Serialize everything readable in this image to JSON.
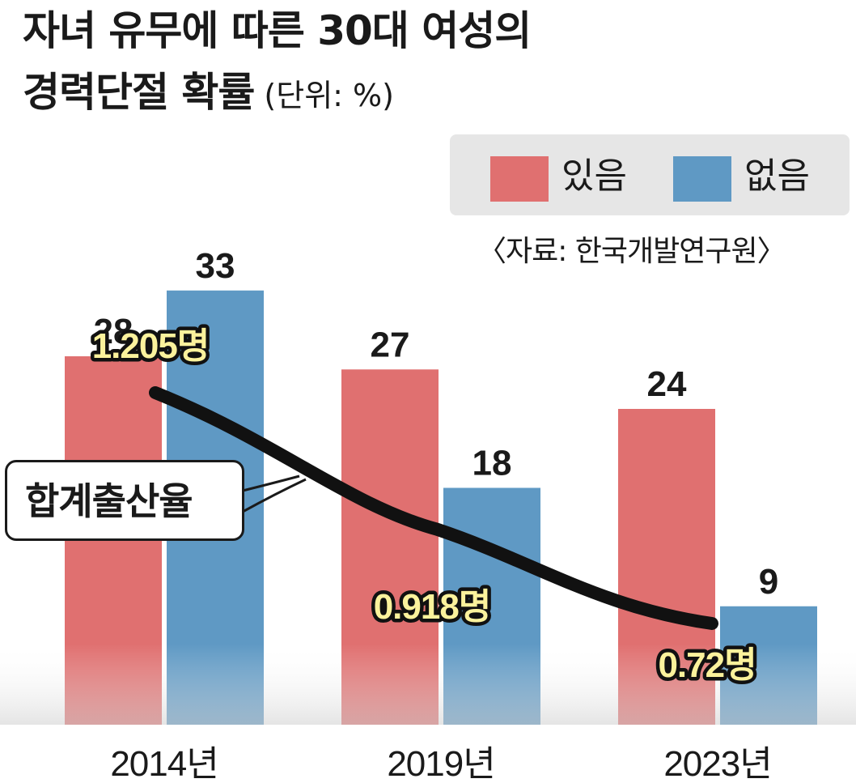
{
  "title_line1": "자녀 유무에 따른 30대 여성의",
  "title_line2": "경력단절 확률",
  "unit": "(단위: %)",
  "source": "〈자료: 한국개발연구원〉",
  "fertility_label": "합계출산율",
  "colors": {
    "with_children": "#e07070",
    "without_children": "#5f99c4",
    "line": "#111111",
    "rate_text": "#fbf29c"
  },
  "chart_data": {
    "type": "bar",
    "categories": [
      "2014년",
      "2019년",
      "2023년"
    ],
    "ylim": [
      0,
      40
    ],
    "legend": "top-right",
    "series": [
      {
        "name": "있음",
        "values": [
          28,
          27,
          24
        ],
        "labels": [
          "28",
          "27",
          "24"
        ]
      },
      {
        "name": "없음",
        "values": [
          33,
          18,
          9
        ],
        "labels": [
          "33",
          "18",
          "9"
        ]
      }
    ],
    "overlay_line": {
      "name": "합계출산율",
      "values": [
        1.205,
        0.918,
        0.72
      ],
      "labels": [
        "1.205명",
        "0.918명",
        "0.72명"
      ]
    }
  }
}
